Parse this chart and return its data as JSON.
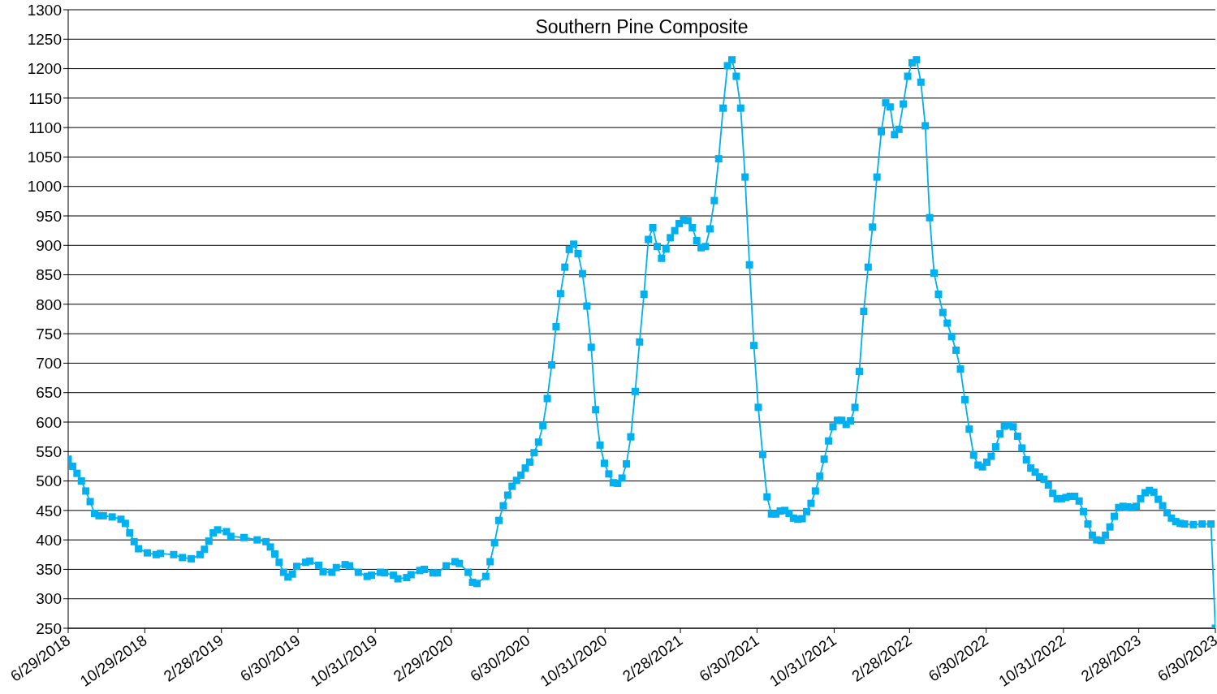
{
  "chart_data": {
    "type": "line",
    "title": "Southern Pine Composite",
    "marker": "square",
    "grid": "y",
    "legend": false,
    "xlim": [
      "2018-06-29",
      "2023-06-30"
    ],
    "xticks": [
      {
        "value": "2018-06-29",
        "label": "6/29/2018"
      },
      {
        "value": "2018-10-29",
        "label": "10/29/2018"
      },
      {
        "value": "2019-02-28",
        "label": "2/28/2019"
      },
      {
        "value": "2019-06-30",
        "label": "6/30/2019"
      },
      {
        "value": "2019-10-31",
        "label": "10/31/2019"
      },
      {
        "value": "2020-02-29",
        "label": "2/29/2020"
      },
      {
        "value": "2020-06-30",
        "label": "6/30/2020"
      },
      {
        "value": "2020-10-31",
        "label": "10/31/2020"
      },
      {
        "value": "2021-02-28",
        "label": "2/28/2021"
      },
      {
        "value": "2021-06-30",
        "label": "6/30/2021"
      },
      {
        "value": "2021-10-31",
        "label": "10/31/2021"
      },
      {
        "value": "2022-02-28",
        "label": "2/28/2022"
      },
      {
        "value": "2022-06-30",
        "label": "6/30/2022"
      },
      {
        "value": "2022-10-31",
        "label": "10/31/2022"
      },
      {
        "value": "2023-02-28",
        "label": "2/28/2023"
      },
      {
        "value": "2023-06-30",
        "label": "6/30/2023"
      }
    ],
    "ylim": [
      250,
      1300
    ],
    "yticks": [
      250,
      300,
      350,
      400,
      450,
      500,
      550,
      600,
      650,
      700,
      750,
      800,
      850,
      900,
      950,
      1000,
      1050,
      1100,
      1150,
      1200,
      1250,
      1300
    ],
    "x": [
      "2018-06-29",
      "2018-07-06",
      "2018-07-13",
      "2018-07-20",
      "2018-07-27",
      "2018-08-03",
      "2018-08-10",
      "2018-08-17",
      "2018-08-24",
      "2018-09-07",
      "2018-09-21",
      "2018-09-28",
      "2018-10-05",
      "2018-10-12",
      "2018-10-19",
      "2018-11-02",
      "2018-11-16",
      "2018-11-23",
      "2018-12-14",
      "2018-12-28",
      "2019-01-11",
      "2019-01-25",
      "2019-02-01",
      "2019-02-08",
      "2019-02-15",
      "2019-02-22",
      "2019-03-08",
      "2019-03-15",
      "2019-04-05",
      "2019-04-26",
      "2019-05-10",
      "2019-05-17",
      "2019-05-24",
      "2019-05-31",
      "2019-06-07",
      "2019-06-14",
      "2019-06-21",
      "2019-06-28",
      "2019-07-12",
      "2019-07-19",
      "2019-08-02",
      "2019-08-09",
      "2019-08-23",
      "2019-08-30",
      "2019-09-13",
      "2019-09-20",
      "2019-10-04",
      "2019-10-18",
      "2019-10-25",
      "2019-11-08",
      "2019-11-15",
      "2019-11-29",
      "2019-12-06",
      "2019-12-20",
      "2019-12-27",
      "2020-01-10",
      "2020-01-17",
      "2020-01-31",
      "2020-02-07",
      "2020-02-21",
      "2020-03-06",
      "2020-03-13",
      "2020-03-27",
      "2020-04-03",
      "2020-04-10",
      "2020-04-24",
      "2020-05-01",
      "2020-05-08",
      "2020-05-15",
      "2020-05-22",
      "2020-05-29",
      "2020-06-05",
      "2020-06-12",
      "2020-06-19",
      "2020-06-26",
      "2020-07-03",
      "2020-07-10",
      "2020-07-17",
      "2020-07-24",
      "2020-07-31",
      "2020-08-07",
      "2020-08-14",
      "2020-08-21",
      "2020-08-28",
      "2020-09-04",
      "2020-09-11",
      "2020-09-18",
      "2020-09-25",
      "2020-10-02",
      "2020-10-09",
      "2020-10-16",
      "2020-10-23",
      "2020-10-30",
      "2020-11-06",
      "2020-11-13",
      "2020-11-20",
      "2020-11-27",
      "2020-12-04",
      "2020-12-11",
      "2020-12-18",
      "2020-12-25",
      "2021-01-01",
      "2021-01-08",
      "2021-01-15",
      "2021-01-22",
      "2021-01-29",
      "2021-02-05",
      "2021-02-12",
      "2021-02-19",
      "2021-02-26",
      "2021-03-05",
      "2021-03-12",
      "2021-03-19",
      "2021-03-26",
      "2021-04-02",
      "2021-04-09",
      "2021-04-16",
      "2021-04-23",
      "2021-04-30",
      "2021-05-07",
      "2021-05-14",
      "2021-05-21",
      "2021-05-28",
      "2021-06-04",
      "2021-06-11",
      "2021-06-18",
      "2021-06-25",
      "2021-07-02",
      "2021-07-09",
      "2021-07-16",
      "2021-07-23",
      "2021-07-30",
      "2021-08-06",
      "2021-08-13",
      "2021-08-20",
      "2021-08-27",
      "2021-09-03",
      "2021-09-10",
      "2021-09-17",
      "2021-09-24",
      "2021-10-01",
      "2021-10-08",
      "2021-10-15",
      "2021-10-22",
      "2021-10-29",
      "2021-11-05",
      "2021-11-12",
      "2021-11-19",
      "2021-11-26",
      "2021-12-03",
      "2021-12-10",
      "2021-12-17",
      "2021-12-24",
      "2021-12-31",
      "2022-01-07",
      "2022-01-14",
      "2022-01-21",
      "2022-01-28",
      "2022-02-04",
      "2022-02-11",
      "2022-02-18",
      "2022-02-25",
      "2022-03-04",
      "2022-03-11",
      "2022-03-18",
      "2022-03-25",
      "2022-04-01",
      "2022-04-08",
      "2022-04-15",
      "2022-04-22",
      "2022-04-29",
      "2022-05-06",
      "2022-05-13",
      "2022-05-20",
      "2022-05-27",
      "2022-06-03",
      "2022-06-10",
      "2022-06-17",
      "2022-06-24",
      "2022-07-01",
      "2022-07-08",
      "2022-07-15",
      "2022-07-22",
      "2022-07-29",
      "2022-08-05",
      "2022-08-12",
      "2022-08-19",
      "2022-08-26",
      "2022-09-02",
      "2022-09-09",
      "2022-09-16",
      "2022-09-23",
      "2022-09-30",
      "2022-10-07",
      "2022-10-14",
      "2022-10-21",
      "2022-10-28",
      "2022-11-04",
      "2022-11-11",
      "2022-11-18",
      "2022-11-25",
      "2022-12-02",
      "2022-12-09",
      "2022-12-16",
      "2022-12-23",
      "2022-12-30",
      "2023-01-06",
      "2023-01-13",
      "2023-01-20",
      "2023-01-27",
      "2023-02-03",
      "2023-02-10",
      "2023-02-17",
      "2023-02-24",
      "2023-03-03",
      "2023-03-10",
      "2023-03-17",
      "2023-03-24",
      "2023-03-31",
      "2023-04-07",
      "2023-04-14",
      "2023-04-21",
      "2023-04-28",
      "2023-05-05",
      "2023-05-12",
      "2023-05-26",
      "2023-06-09",
      "2023-06-23",
      "2023-06-30"
    ],
    "series": [
      {
        "color": "#00b0f0",
        "values": [
          537,
          525,
          513,
          500,
          483,
          465,
          445,
          441,
          441,
          439,
          435,
          428,
          412,
          397,
          385,
          378,
          375,
          377,
          375,
          370,
          368,
          375,
          384,
          398,
          412,
          417,
          414,
          406,
          404,
          400,
          397,
          388,
          376,
          362,
          345,
          337,
          342,
          355,
          362,
          364,
          357,
          346,
          345,
          353,
          358,
          356,
          345,
          338,
          340,
          345,
          344,
          340,
          334,
          336,
          341,
          348,
          350,
          344,
          344,
          356,
          363,
          360,
          345,
          328,
          326,
          338,
          363,
          395,
          433,
          458,
          476,
          491,
          501,
          510,
          522,
          532,
          548,
          566,
          594,
          640,
          697,
          762,
          818,
          863,
          893,
          902,
          886,
          852,
          797,
          727,
          621,
          561,
          530,
          512,
          497,
          496,
          505,
          529,
          575,
          652,
          736,
          817,
          910,
          930,
          898,
          878,
          894,
          913,
          925,
          937,
          943,
          942,
          930,
          908,
          896,
          898,
          928,
          976,
          1047,
          1133,
          1205,
          1215,
          1187,
          1133,
          1016,
          867,
          730,
          625,
          545,
          473,
          444,
          444,
          449,
          450,
          445,
          437,
          435,
          436,
          448,
          462,
          483,
          508,
          537,
          568,
          592,
          603,
          603,
          596,
          602,
          625,
          686,
          788,
          863,
          931,
          1016,
          1093,
          1142,
          1135,
          1088,
          1097,
          1140,
          1187,
          1210,
          1215,
          1177,
          1103,
          947,
          853,
          817,
          786,
          768,
          745,
          722,
          690,
          638,
          588,
          544,
          527,
          524,
          532,
          542,
          558,
          580,
          593,
          595,
          592,
          576,
          556,
          536,
          522,
          515,
          507,
          503,
          493,
          479,
          470,
          470,
          472,
          474,
          474,
          466,
          448,
          427,
          408,
          400,
          399,
          408,
          422,
          440,
          455,
          457,
          456,
          455,
          457,
          470,
          480,
          484,
          481,
          469,
          458,
          446,
          437,
          431,
          428,
          427,
          426,
          427,
          427,
          250
        ]
      }
    ]
  }
}
